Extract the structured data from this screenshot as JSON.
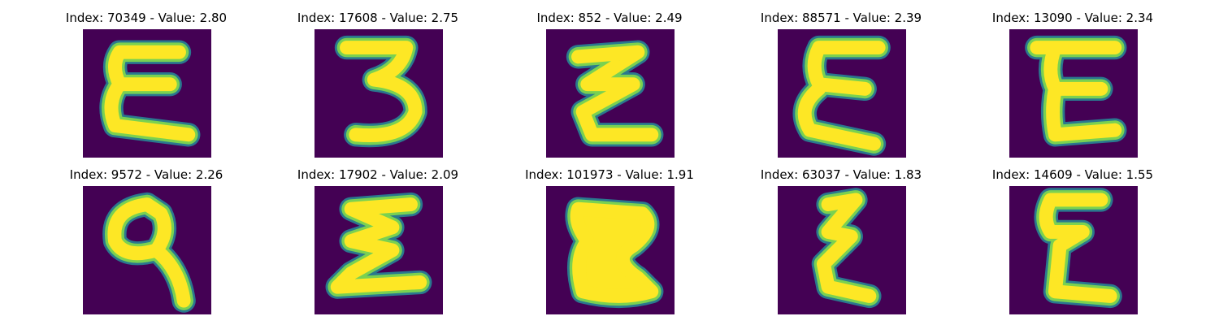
{
  "panels": [
    {
      "index": "70349",
      "value": "2.80",
      "title": "Index: 70349 - Value: 2.80",
      "glyph": "epsilon-glyph"
    },
    {
      "index": "17608",
      "value": "2.75",
      "title": "Index: 17608 - Value: 2.75",
      "glyph": "three-glyph"
    },
    {
      "index": "852",
      "value": "2.49",
      "title": "Index: 852 - Value: 2.49",
      "glyph": "zigzag-z-glyph"
    },
    {
      "index": "88571",
      "value": "2.39",
      "title": "Index: 88571 - Value: 2.39",
      "glyph": "epsilon-glyph"
    },
    {
      "index": "13090",
      "value": "2.34",
      "title": "Index: 13090 - Value: 2.34",
      "glyph": "epsilon-glyph"
    },
    {
      "index": "9572",
      "value": "2.26",
      "title": "Index: 9572 - Value: 2.26",
      "glyph": "loop-q-glyph"
    },
    {
      "index": "17902",
      "value": "2.09",
      "title": "Index: 17902 - Value: 2.09",
      "glyph": "epsilon-glyph"
    },
    {
      "index": "101973",
      "value": "1.91",
      "title": "Index: 101973 - Value: 1.91",
      "glyph": "sigma-blob-glyph"
    },
    {
      "index": "63037",
      "value": "1.83",
      "title": "Index: 63037 - Value: 1.83",
      "glyph": "zigzag-z-glyph"
    },
    {
      "index": "14609",
      "value": "1.55",
      "title": "Index: 14609 - Value: 1.55",
      "glyph": "epsilon-glyph"
    }
  ],
  "colors": {
    "background": "#440154",
    "stroke_outer": "#2a788e",
    "stroke_mid": "#7ad151",
    "stroke_core": "#fde725"
  }
}
